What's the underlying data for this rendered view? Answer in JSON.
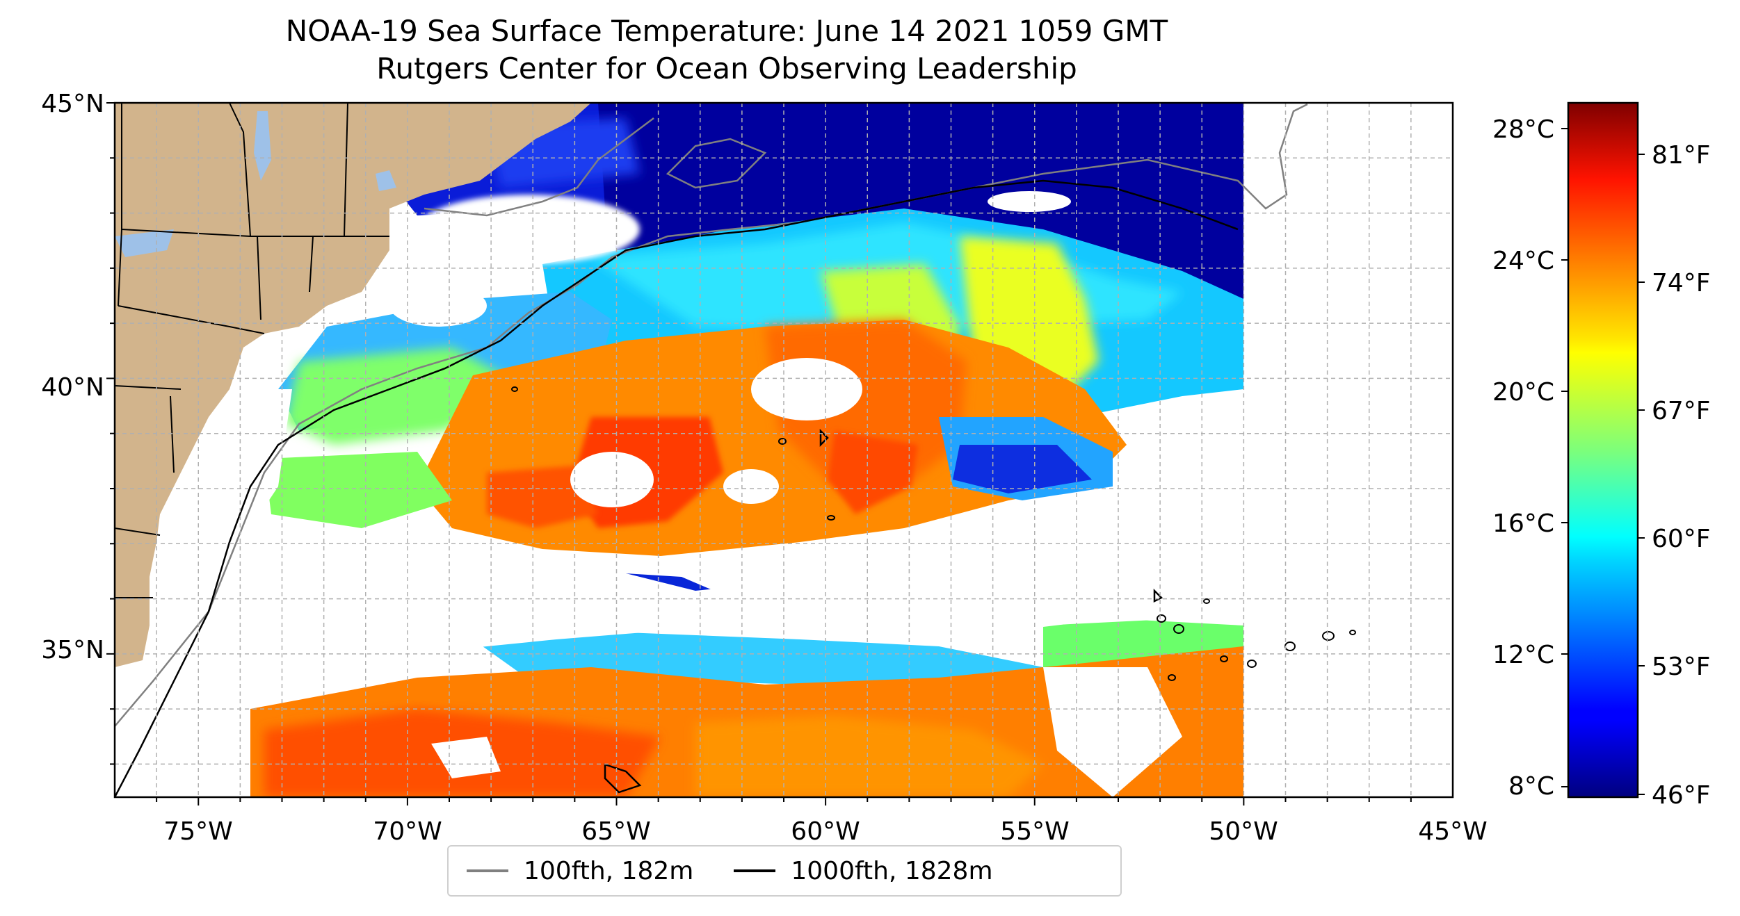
{
  "title": {
    "line1": "NOAA-19 Sea Surface Temperature: June 14 2021 1059 GMT",
    "line2": "Rutgers Center for Ocean Observing Leadership"
  },
  "map": {
    "lon_ticks": [
      "75°W",
      "70°W",
      "65°W",
      "60°W",
      "55°W",
      "50°W",
      "45°W"
    ],
    "lat_ticks": [
      "45°N",
      "40°N",
      "35°N"
    ],
    "extent": {
      "lon": [
        -77,
        -45
      ],
      "lat": [
        32.4,
        45
      ]
    },
    "colors": {
      "land": "#d2b48c",
      "lakes": "#9ec1e8",
      "grid": "#b0b0b0"
    }
  },
  "colorbar": {
    "celsius_labels": [
      "28°C",
      "24°C",
      "20°C",
      "16°C",
      "12°C",
      "8°C"
    ],
    "fahrenheit_labels": [
      "81°F",
      "74°F",
      "67°F",
      "60°F",
      "53°F",
      "46°F"
    ],
    "colormap": "jet"
  },
  "legend": {
    "items": [
      {
        "label": "100fth, 182m",
        "color": "#808080"
      },
      {
        "label": "1000fth, 1828m",
        "color": "#000000"
      }
    ]
  }
}
